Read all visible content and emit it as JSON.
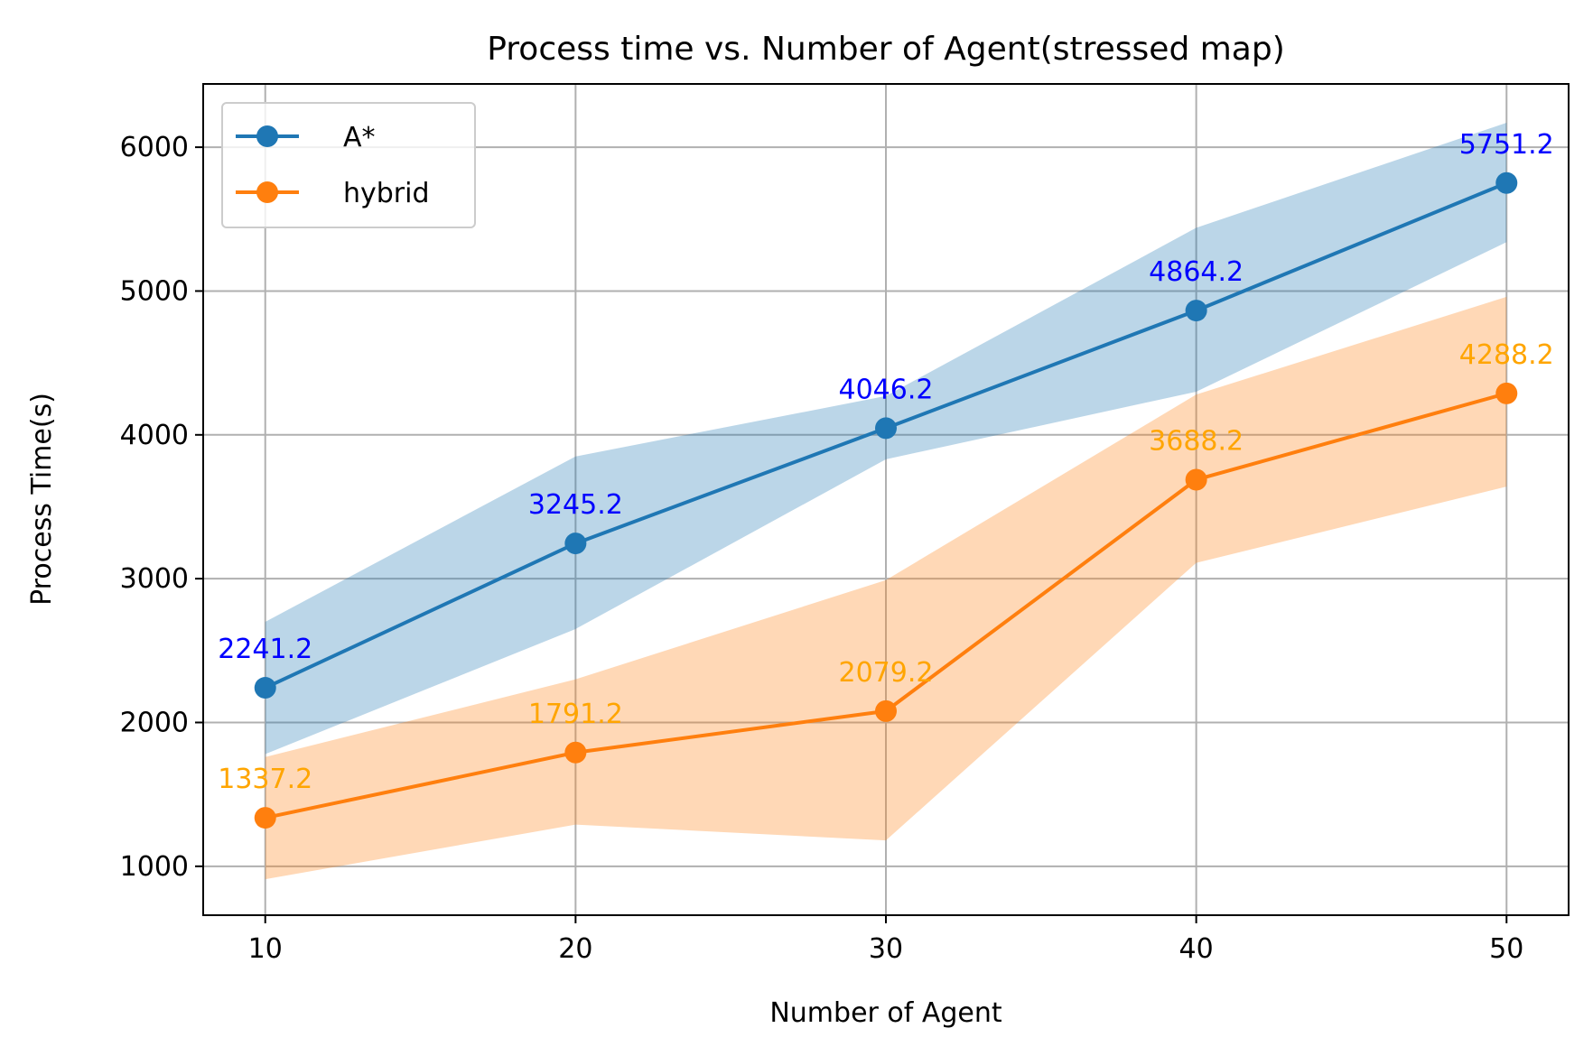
{
  "chart_data": {
    "type": "line",
    "title": "Process time vs. Number of Agent(stressed map)",
    "xlabel": "Number of  Agent",
    "ylabel": "Process Time(s)",
    "x": [
      10,
      20,
      30,
      40,
      50
    ],
    "xlim": [
      8,
      52
    ],
    "ylim": [
      660,
      6440
    ],
    "xticks": [
      10,
      20,
      30,
      40,
      50
    ],
    "yticks": [
      1000,
      2000,
      3000,
      4000,
      5000,
      6000
    ],
    "grid": true,
    "legend": "upper-left",
    "series": [
      {
        "name": "A*",
        "color": "#1f77b4",
        "band_color": "#1f77b4",
        "label_color": "#0000ff",
        "values": [
          2241.2,
          3245.2,
          4046.2,
          4864.2,
          5751.2
        ],
        "labels": [
          "2241.2",
          "3245.2",
          "4046.2",
          "4864.2",
          "5751.2"
        ],
        "band_upper": [
          2700,
          3850,
          4270,
          5440,
          6170
        ],
        "band_lower": [
          1780,
          2650,
          3830,
          4300,
          5340
        ]
      },
      {
        "name": "hybrid",
        "color": "#ff7f0e",
        "band_color": "#ff7f0e",
        "label_color": "#ffa500",
        "values": [
          1337.2,
          1791.2,
          2079.2,
          3688.2,
          4288.2
        ],
        "labels": [
          "1337.2",
          "1791.2",
          "2079.2",
          "3688.2",
          "4288.2"
        ],
        "band_upper": [
          1760,
          2300,
          2990,
          4280,
          4960
        ],
        "band_lower": [
          910,
          1290,
          1180,
          3110,
          3640
        ]
      }
    ]
  }
}
